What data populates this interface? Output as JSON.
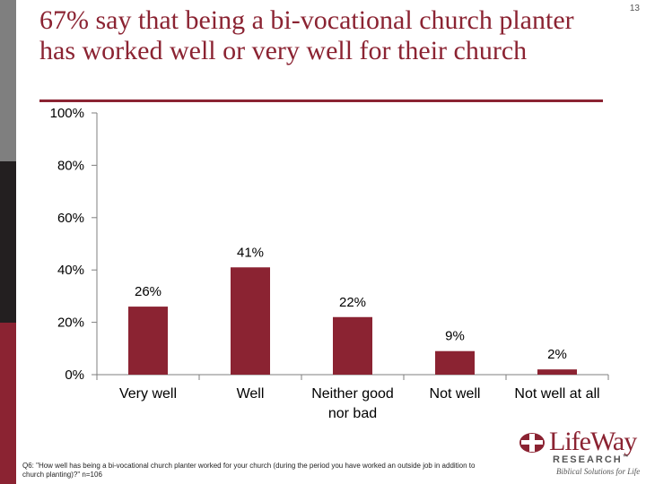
{
  "page_number": "13",
  "title": "67% say that being a bi-vocational church planter has worked well or very well for their church",
  "footnote": "Q6: \"How well has being a bi-vocational church planter worked for your church (during the period you have worked an outside job in addition to church planting)?\" n=106",
  "logo": {
    "word": "LifeWay",
    "research": "RESEARCH",
    "trademark": "™",
    "tagline": "Biblical Solutions for Life"
  },
  "colors": {
    "bar": "#8b2332",
    "title": "#8b2332",
    "axis": "#7f7f7f",
    "text": "#000000"
  },
  "chart_data": {
    "type": "bar",
    "categories": [
      "Very well",
      "Well",
      "Neither good nor bad",
      "Not well",
      "Not well at all"
    ],
    "category_lines": [
      [
        "Very well"
      ],
      [
        "Well"
      ],
      [
        "Neither good",
        "nor bad"
      ],
      [
        "Not well"
      ],
      [
        "Not well at all"
      ]
    ],
    "values": [
      26,
      41,
      22,
      9,
      2
    ],
    "value_labels": [
      "26%",
      "41%",
      "22%",
      "9%",
      "2%"
    ],
    "ylim": [
      0,
      100
    ],
    "yticks": [
      0,
      20,
      40,
      60,
      80,
      100
    ],
    "ytick_labels": [
      "0%",
      "20%",
      "40%",
      "60%",
      "80%",
      "100%"
    ],
    "grid": false,
    "legend": "none"
  }
}
